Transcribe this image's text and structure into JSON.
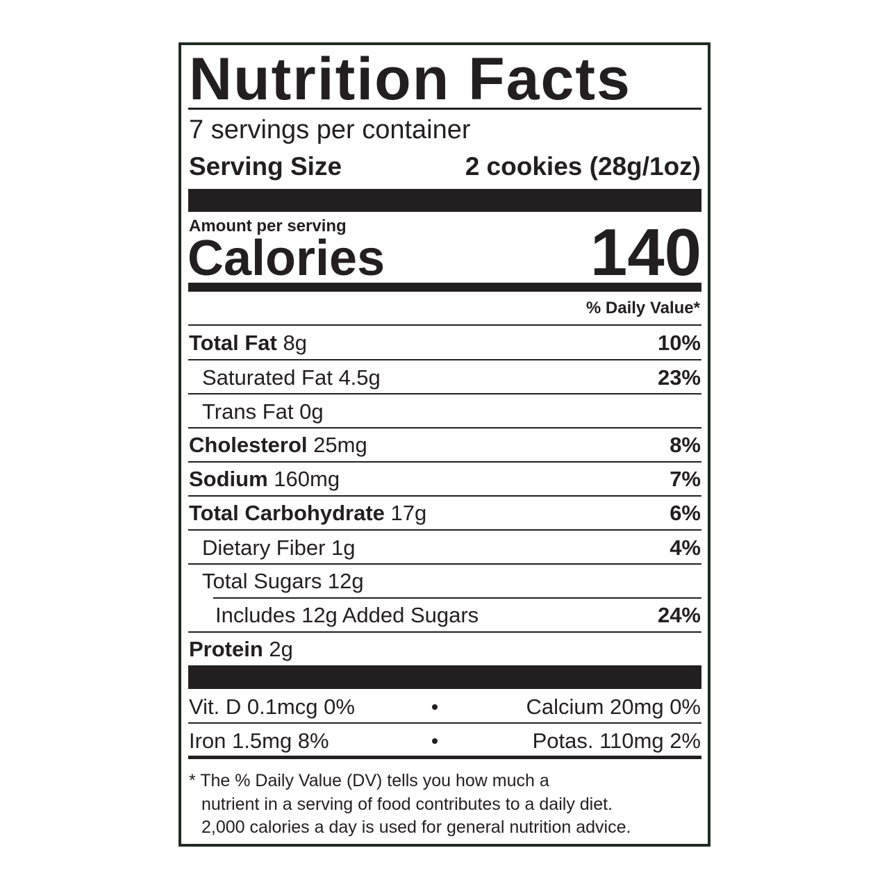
{
  "title": "Nutrition Facts",
  "servings": "7 servings per container",
  "serving_size": {
    "label": "Serving Size",
    "value": "2 cookies (28g/1oz)"
  },
  "amount_per_serving": "Amount per serving",
  "calories": {
    "label": "Calories",
    "value": "140"
  },
  "daily_value_header": "% Daily Value*",
  "nutrients": [
    {
      "name": "Total Fat",
      "amount": "8g",
      "dv": "10%"
    },
    {
      "name": "Saturated Fat 4.5g",
      "dv": "23%"
    },
    {
      "name": "Trans Fat 0g"
    },
    {
      "name": "Cholesterol",
      "amount": "25mg",
      "dv": "8%"
    },
    {
      "name": "Sodium",
      "amount": "160mg",
      "dv": "7%"
    },
    {
      "name": "Total Carbohydrate",
      "amount": "17g",
      "dv": "6%"
    },
    {
      "name": "Dietary Fiber 1g",
      "dv": "4%"
    },
    {
      "name": "Total Sugars 12g"
    },
    {
      "name": "Includes 12g Added Sugars",
      "dv": "24%"
    },
    {
      "name": "Protein",
      "amount": "2g"
    }
  ],
  "vitamins": [
    [
      "Vit. D 0.1mcg 0%",
      "Calcium 20mg 0%"
    ],
    [
      "Iron 1.5mg 8%",
      "Potas. 110mg 2%"
    ]
  ],
  "footnote": [
    "* The % Daily Value (DV) tells you how much a",
    "nutrient in a serving of food contributes to a daily diet.",
    "2,000 calories a day is used for general nutrition advice."
  ]
}
